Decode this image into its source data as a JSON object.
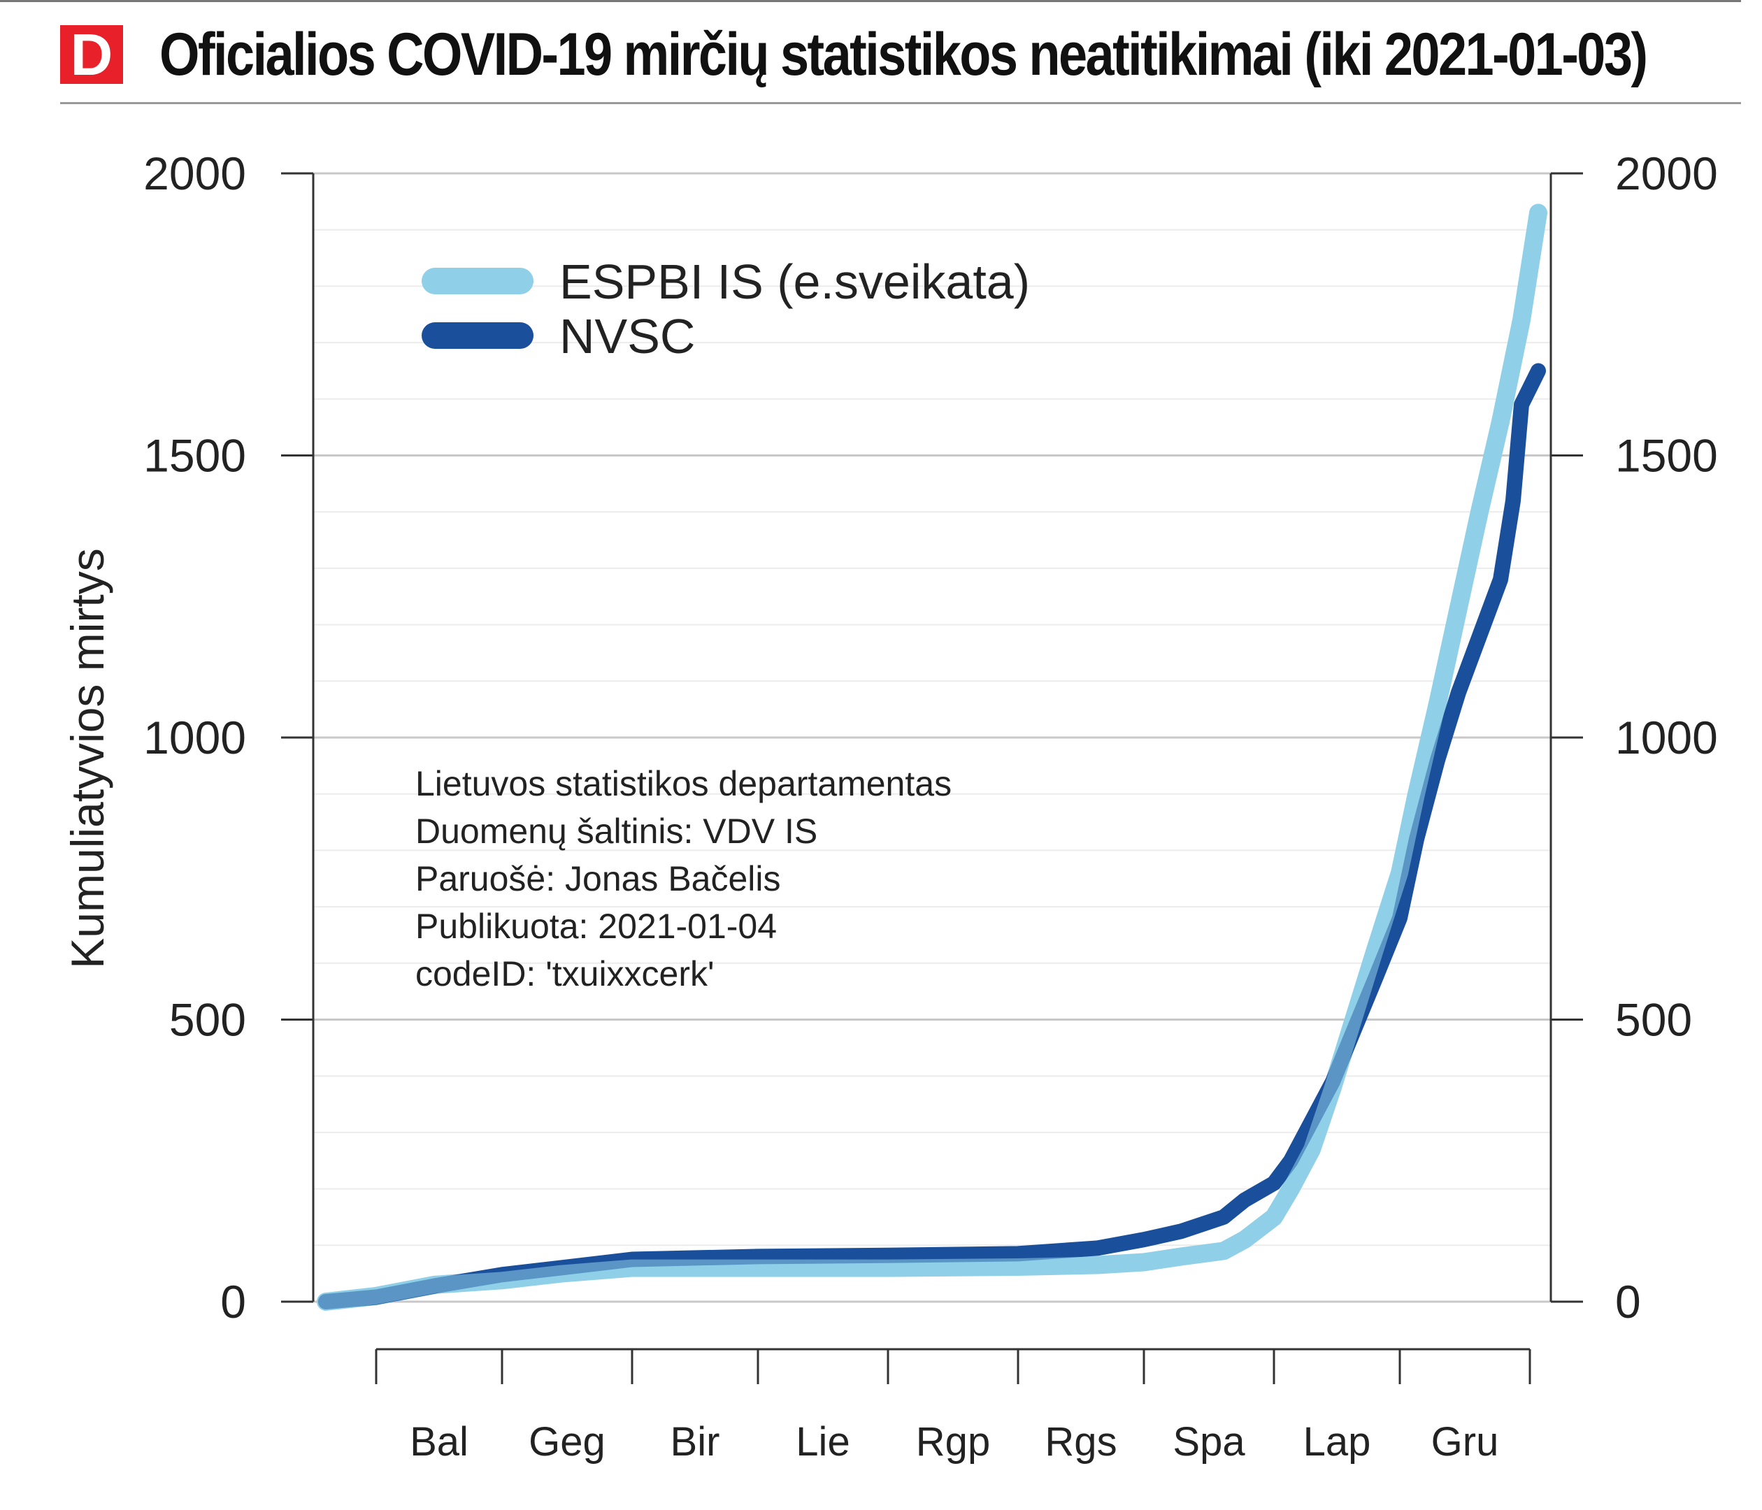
{
  "header": {
    "logo_letter": "D",
    "title": "Oficialios COVID-19 mirčių statistikos neatitikimai (iki 2021-01-03)",
    "brand_color": "#e8202a"
  },
  "chart_data": {
    "type": "line",
    "title": "Oficialios COVID-19 mirčių statistikos neatitikimai (iki 2021-01-03)",
    "ylabel": "Kumuliatyvios mirtys",
    "xlabel": "",
    "ylim": [
      0,
      2000
    ],
    "yticks": [
      0,
      500,
      1000,
      1500,
      2000
    ],
    "ytick_labels": [
      "0",
      "500",
      "1000",
      "1500",
      "2000"
    ],
    "x_tick_labels": [
      "Bal",
      "Geg",
      "Bir",
      "Lie",
      "Rgp",
      "Rgs",
      "Spa",
      "Lap",
      "Gru"
    ],
    "grid": true,
    "legend_position": "top-left",
    "series": [
      {
        "name": "ESPBI IS (e.sveikata)",
        "color": "#8fd0e8",
        "x": [
          "2020-03-20",
          "2020-04-01",
          "2020-04-15",
          "2020-05-01",
          "2020-05-15",
          "2020-06-01",
          "2020-07-01",
          "2020-08-01",
          "2020-09-01",
          "2020-09-20",
          "2020-10-01",
          "2020-10-10",
          "2020-10-20",
          "2020-10-25",
          "2020-11-01",
          "2020-11-05",
          "2020-11-10",
          "2020-11-15",
          "2020-11-20",
          "2020-11-25",
          "2020-12-01",
          "2020-12-05",
          "2020-12-10",
          "2020-12-15",
          "2020-12-20",
          "2020-12-25",
          "2020-12-30",
          "2021-01-03"
        ],
        "values": [
          0,
          10,
          30,
          38,
          50,
          60,
          60,
          60,
          62,
          65,
          70,
          80,
          90,
          110,
          150,
          200,
          270,
          380,
          500,
          620,
          760,
          900,
          1060,
          1230,
          1400,
          1560,
          1740,
          1930
        ]
      },
      {
        "name": "NVSC",
        "color": "#1a4f9c",
        "x": [
          "2020-03-20",
          "2020-04-01",
          "2020-04-15",
          "2020-05-01",
          "2020-05-15",
          "2020-06-01",
          "2020-07-01",
          "2020-08-01",
          "2020-09-01",
          "2020-09-20",
          "2020-10-01",
          "2020-10-10",
          "2020-10-20",
          "2020-10-25",
          "2020-11-01",
          "2020-11-05",
          "2020-11-10",
          "2020-11-15",
          "2020-11-20",
          "2020-11-25",
          "2020-12-01",
          "2020-12-05",
          "2020-12-10",
          "2020-12-15",
          "2020-12-20",
          "2020-12-25",
          "2020-12-28",
          "2020-12-30",
          "2021-01-03"
        ],
        "values": [
          0,
          8,
          28,
          48,
          60,
          75,
          80,
          82,
          85,
          95,
          110,
          125,
          150,
          180,
          210,
          250,
          320,
          390,
          480,
          570,
          680,
          820,
          960,
          1080,
          1180,
          1280,
          1420,
          1590,
          1650
        ]
      }
    ],
    "annotation": [
      "Lietuvos statistikos departamentas",
      "Duomenų šaltinis: VDV IS",
      "Paruošė: Jonas Bačelis",
      "Publikuota: 2021-01-04",
      "codeID: 'txuixxcerk'"
    ]
  }
}
